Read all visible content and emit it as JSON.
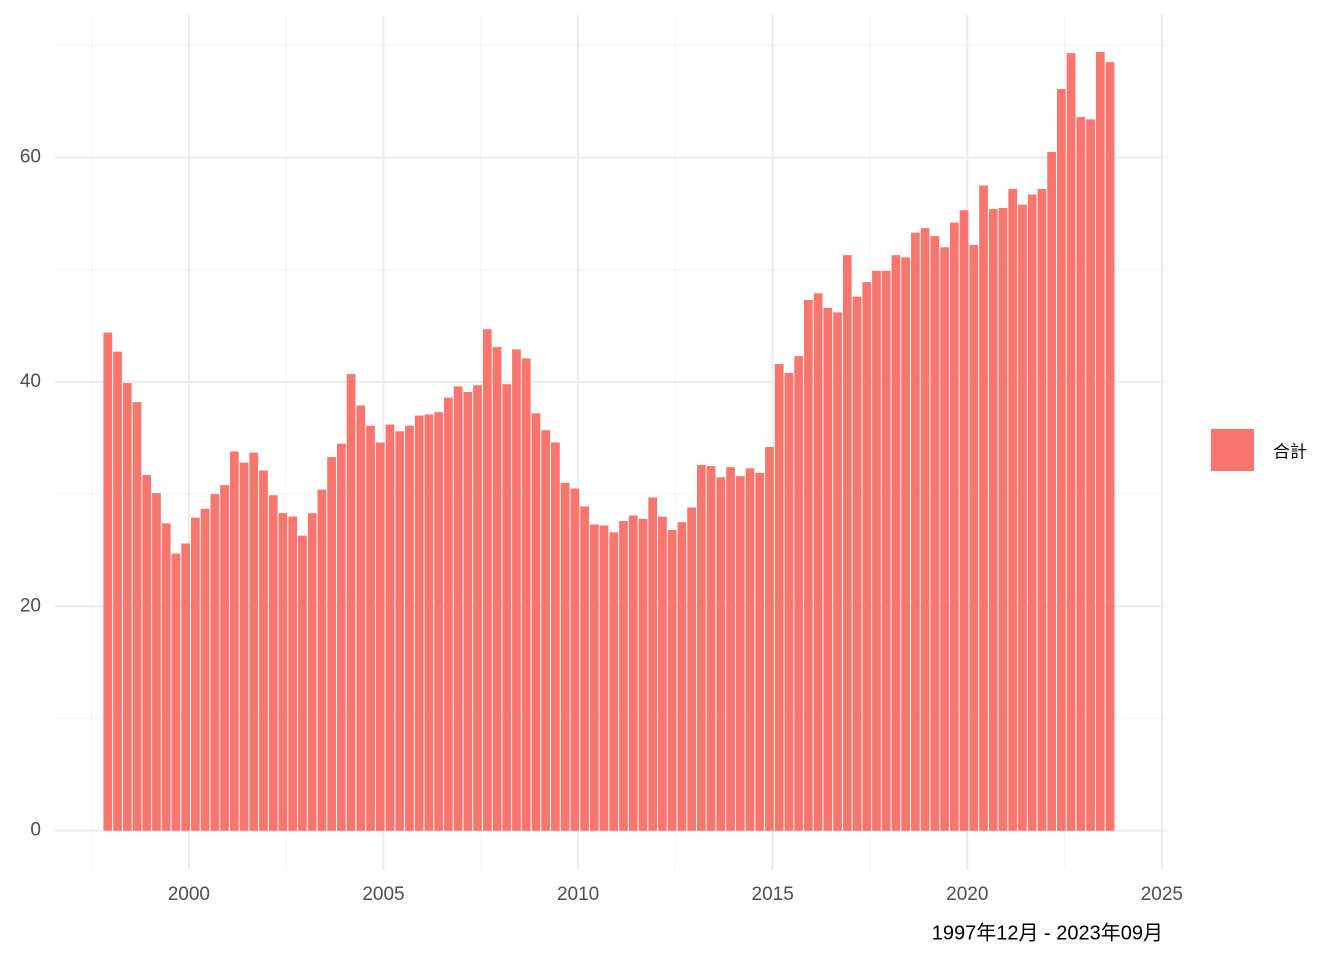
{
  "chart_data": {
    "type": "bar",
    "color": "#f8766d",
    "legend": "合計",
    "legend_position": "right",
    "caption": "1997年12月 - 2023年09月",
    "grid": true,
    "xlim": [
      1996.56,
      2025.08
    ],
    "xticks": [
      2000,
      2005,
      2010,
      2015,
      2020,
      2025
    ],
    "ylim": [
      -3.5,
      72.7
    ],
    "yticks": [
      0,
      20,
      40,
      60
    ],
    "x": [
      1997.917,
      1998.167,
      1998.417,
      1998.667,
      1998.917,
      1999.167,
      1999.417,
      1999.667,
      1999.917,
      2000.167,
      2000.417,
      2000.667,
      2000.917,
      2001.167,
      2001.417,
      2001.667,
      2001.917,
      2002.167,
      2002.417,
      2002.667,
      2002.917,
      2003.167,
      2003.417,
      2003.667,
      2003.917,
      2004.167,
      2004.417,
      2004.667,
      2004.917,
      2005.167,
      2005.417,
      2005.667,
      2005.917,
      2006.167,
      2006.417,
      2006.667,
      2006.917,
      2007.167,
      2007.417,
      2007.667,
      2007.917,
      2008.167,
      2008.417,
      2008.667,
      2008.917,
      2009.167,
      2009.417,
      2009.667,
      2009.917,
      2010.167,
      2010.417,
      2010.667,
      2010.917,
      2011.167,
      2011.417,
      2011.667,
      2011.917,
      2012.167,
      2012.417,
      2012.667,
      2012.917,
      2013.167,
      2013.417,
      2013.667,
      2013.917,
      2014.167,
      2014.417,
      2014.667,
      2014.917,
      2015.167,
      2015.417,
      2015.667,
      2015.917,
      2016.167,
      2016.417,
      2016.667,
      2016.917,
      2017.167,
      2017.417,
      2017.667,
      2017.917,
      2018.167,
      2018.417,
      2018.667,
      2018.917,
      2019.167,
      2019.417,
      2019.667,
      2019.917,
      2020.167,
      2020.417,
      2020.667,
      2020.917,
      2021.167,
      2021.417,
      2021.667,
      2021.917,
      2022.167,
      2022.417,
      2022.667,
      2022.917,
      2023.167,
      2023.417,
      2023.667
    ],
    "values": [
      44.4,
      42.7,
      39.9,
      38.2,
      31.7,
      30.1,
      27.4,
      24.7,
      25.6,
      27.9,
      28.7,
      30.0,
      30.8,
      33.8,
      32.8,
      33.7,
      32.1,
      29.9,
      28.3,
      28.0,
      26.3,
      28.3,
      30.4,
      33.3,
      34.5,
      40.7,
      37.9,
      36.1,
      34.6,
      36.2,
      35.6,
      36.1,
      37.0,
      37.1,
      37.3,
      38.6,
      39.6,
      39.1,
      39.7,
      44.7,
      43.1,
      39.8,
      42.9,
      42.1,
      37.2,
      35.7,
      34.6,
      31.0,
      30.5,
      28.9,
      27.3,
      27.2,
      26.6,
      27.6,
      28.1,
      27.8,
      29.7,
      28.0,
      26.8,
      27.5,
      28.8,
      32.6,
      32.5,
      31.5,
      32.4,
      31.6,
      32.3,
      31.9,
      34.2,
      41.6,
      40.8,
      42.3,
      47.3,
      47.9,
      46.6,
      46.2,
      51.3,
      47.6,
      48.9,
      49.9,
      49.9,
      51.3,
      51.1,
      53.3,
      53.7,
      53.0,
      52.0,
      54.2,
      55.3,
      52.2,
      57.5,
      55.4,
      55.5,
      57.2,
      55.8,
      56.7,
      57.2,
      60.5,
      66.1,
      69.3,
      63.6,
      63.4,
      69.4,
      68.5
    ]
  }
}
